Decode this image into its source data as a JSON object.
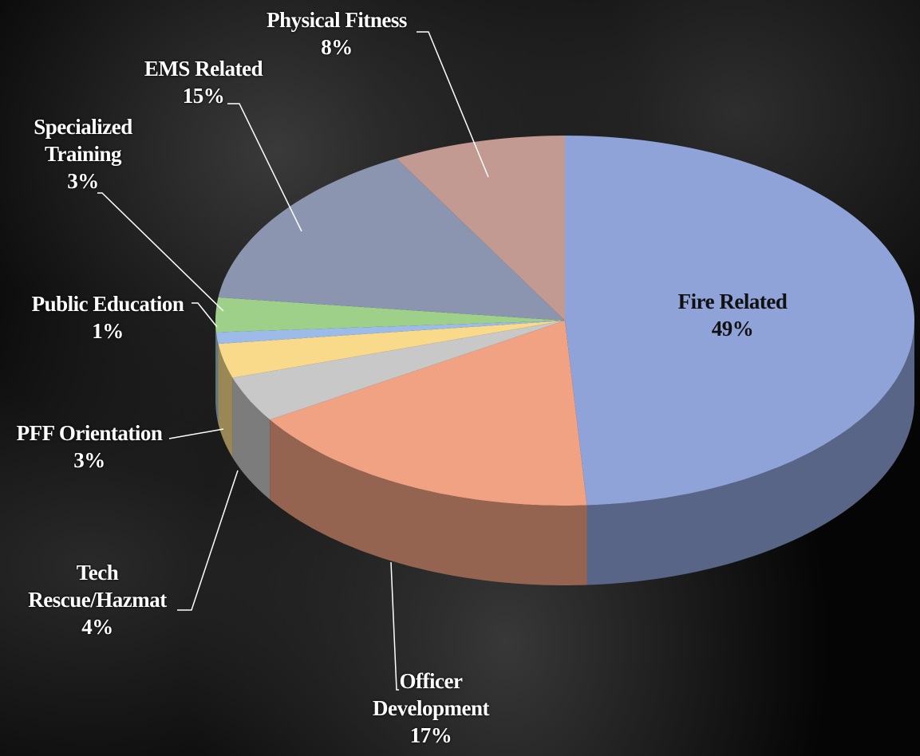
{
  "chart_data": {
    "type": "pie3d",
    "categories": [
      "Fire Related",
      "Officer Development",
      "Tech Rescue/Hazmat",
      "PFF Orientation",
      "Public Education",
      "Specialized Training",
      "EMS Related",
      "Physical Fitness"
    ],
    "values": [
      49,
      17,
      4,
      3,
      1,
      3,
      15,
      8
    ],
    "value_labels": [
      "49%",
      "17%",
      "4%",
      "3%",
      "1%",
      "3%",
      "15%",
      "8%"
    ],
    "colors": [
      "#8fa3d8",
      "#f0a283",
      "#c8c8c8",
      "#f9d98a",
      "#9dbbe8",
      "#9fd08a",
      "#8c95b0",
      "#c29a91"
    ]
  }
}
